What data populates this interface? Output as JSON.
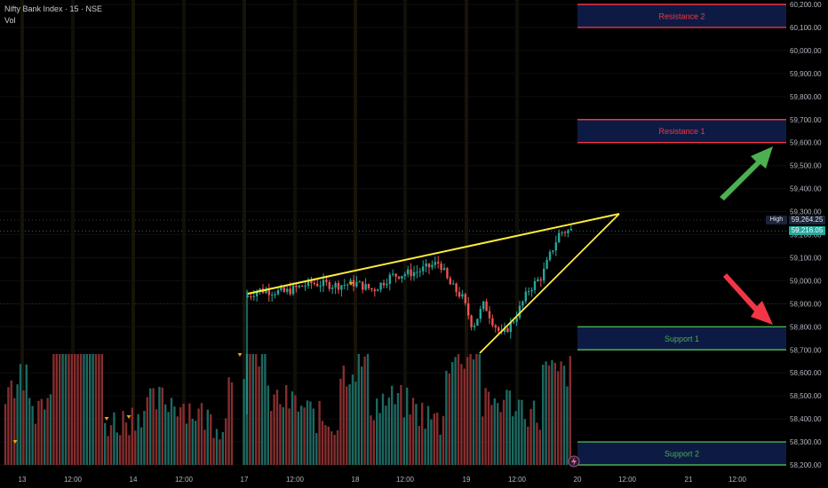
{
  "header": {
    "title": "Nifty Bank Index · 15 · NSE",
    "indicator": "Vol"
  },
  "chart_data": {
    "type": "candlestick",
    "symbol": "Nifty Bank Index",
    "interval": "15",
    "exchange": "NSE",
    "ylim": [
      58150,
      60250
    ],
    "y_ticks": [
      {
        "value": 58200,
        "label": "58,200.00"
      },
      {
        "value": 58300,
        "label": "58,300.00"
      },
      {
        "value": 58400,
        "label": "58,400.00"
      },
      {
        "value": 58500,
        "label": "58,500.00"
      },
      {
        "value": 58600,
        "label": "58,600.00"
      },
      {
        "value": 58700,
        "label": "58,700.00"
      },
      {
        "value": 58800,
        "label": "58,800.00"
      },
      {
        "value": 58900,
        "label": "58,900.00"
      },
      {
        "value": 59000,
        "label": "59,000.00"
      },
      {
        "value": 59100,
        "label": "59,100.00"
      },
      {
        "value": 59200,
        "label": "59,200.00"
      },
      {
        "value": 59300,
        "label": "59,300.00"
      },
      {
        "value": 59400,
        "label": "59,400.00"
      },
      {
        "value": 59500,
        "label": "59,500.00"
      },
      {
        "value": 59600,
        "label": "59,600.00"
      },
      {
        "value": 59700,
        "label": "59,700.00"
      },
      {
        "value": 59800,
        "label": "59,800.00"
      },
      {
        "value": 59900,
        "label": "59,900.00"
      },
      {
        "value": 60000,
        "label": "60,000.00"
      },
      {
        "value": 60100,
        "label": "60,100.00"
      },
      {
        "value": 60200,
        "label": "60,200.00"
      }
    ],
    "x_ticks": [
      "13",
      "12:00",
      "14",
      "12:00",
      "17",
      "12:00",
      "18",
      "12:00",
      "19",
      "12:00",
      "20",
      "12:00",
      "21",
      "12:00"
    ],
    "zones": [
      {
        "label": "Resistance 2",
        "low": 60100,
        "high": 60200,
        "kind": "resistance"
      },
      {
        "label": "Resistance 1",
        "low": 59600,
        "high": 59700,
        "kind": "resistance"
      },
      {
        "label": "Support 1",
        "low": 58700,
        "high": 58800,
        "kind": "support"
      },
      {
        "label": "Support 2",
        "low": 58200,
        "high": 58300,
        "kind": "support"
      }
    ],
    "price_tags": {
      "high_label": "High",
      "high_value": 59264.25,
      "high_text": "59,264.25",
      "last_value": 59216.05,
      "last_text": "59,216.05"
    },
    "trendlines": [
      {
        "name": "upper",
        "points": [
          [
            17,
            58940
          ],
          [
            20.8,
            59290
          ]
        ]
      },
      {
        "name": "lower",
        "points": [
          [
            19.3,
            58690
          ],
          [
            20.8,
            59290
          ]
        ]
      }
    ],
    "colors": {
      "up": "#26a69a",
      "down": "#ef5350",
      "trendline": "#ffeb3b",
      "resistance": "#f23645",
      "support": "#4caf50",
      "zone_fill": "#0d1b44",
      "arrow_up": "#4caf50",
      "arrow_down": "#f23645"
    }
  }
}
